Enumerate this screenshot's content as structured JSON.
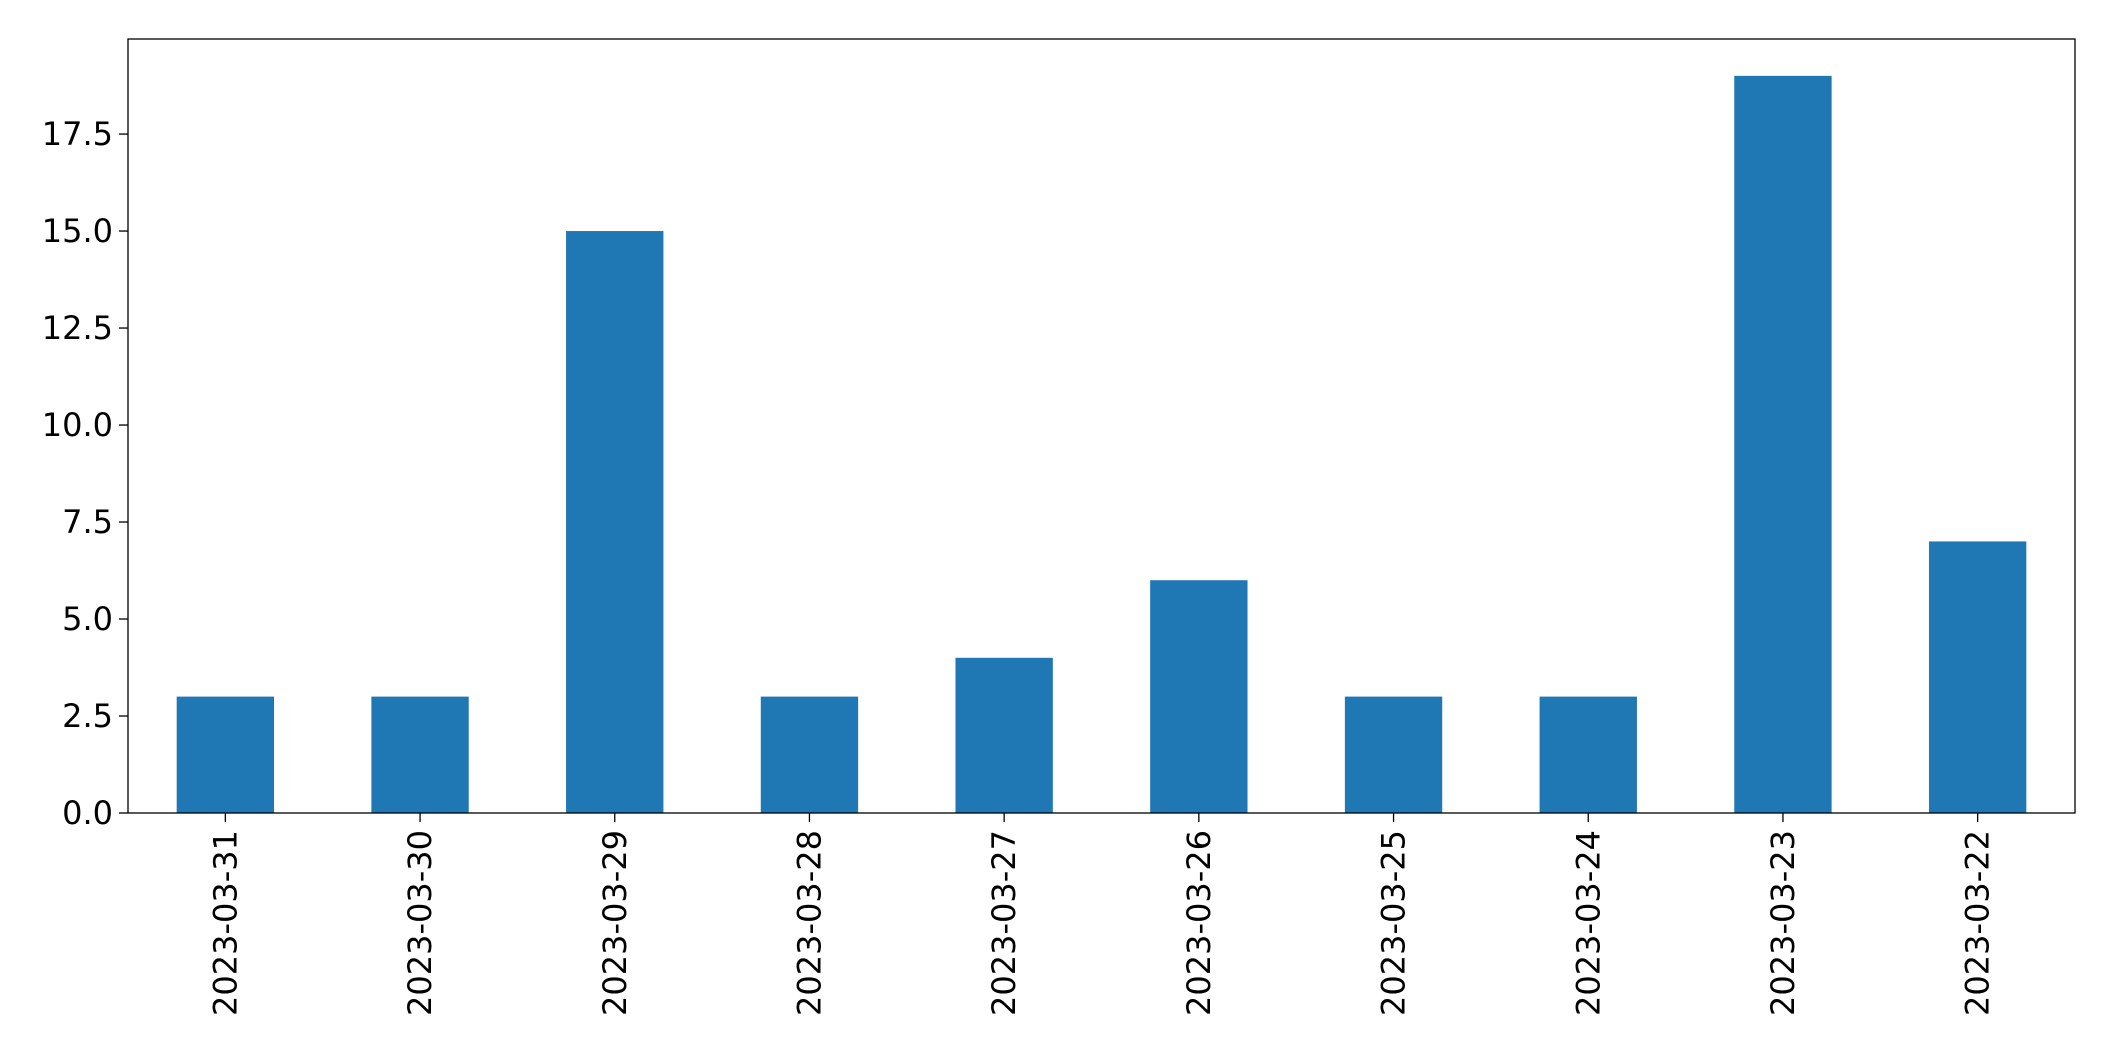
{
  "chart_data": {
    "type": "bar",
    "categories": [
      "2023-03-31",
      "2023-03-30",
      "2023-03-29",
      "2023-03-28",
      "2023-03-27",
      "2023-03-26",
      "2023-03-25",
      "2023-03-24",
      "2023-03-23",
      "2023-03-22"
    ],
    "values": [
      3,
      3,
      15,
      3,
      4,
      6,
      3,
      3,
      19,
      7
    ],
    "color": "#1f77b4",
    "ylim": [
      0,
      19.95
    ],
    "yticks": [
      {
        "value": 0,
        "label": "0.0"
      },
      2.5,
      {
        "value": 5,
        "label": "5.0"
      },
      7.5,
      {
        "value": 10,
        "label": "10.0"
      },
      12.5,
      {
        "value": 15,
        "label": "15.0"
      },
      17.5
    ],
    "grid": false
  }
}
